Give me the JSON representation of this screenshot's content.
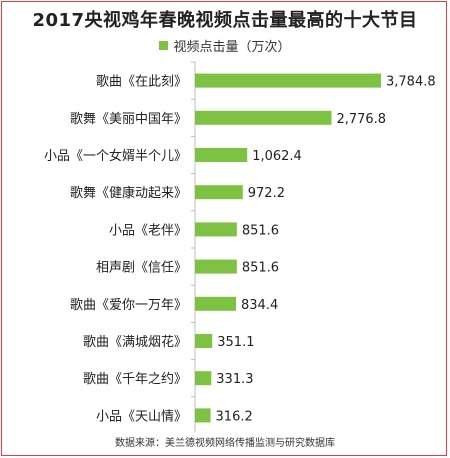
{
  "chart_data": {
    "type": "bar",
    "orientation": "horizontal",
    "title": "2017央视鸡年春晚视频点击量最高的十大节目",
    "categories": [
      "歌曲《在此刻》",
      "歌舞《美丽中国年》",
      "小品《一个女婿半个儿》",
      "歌舞《健康动起来》",
      "小品《老伴》",
      "相声剧《信任》",
      "歌曲《爱你一万年》",
      "歌曲《满城烟花》",
      "歌曲《千年之约》",
      "小品《天山情》"
    ],
    "series": [
      {
        "name": "视频点击量（万次）",
        "values": [
          3784.8,
          2776.8,
          1062.4,
          972.2,
          851.6,
          851.6,
          834.4,
          351.1,
          331.3,
          316.2
        ],
        "labels": [
          "3,784.8",
          "2,776.8",
          "1,062.4",
          "972.2",
          "851.6",
          "851.6",
          "834.4",
          "351.1",
          "331.3",
          "316.2"
        ],
        "color": "#7dc242"
      }
    ],
    "xlim": [
      0,
      3784.8
    ],
    "grid": false,
    "legend_position": "top-center"
  },
  "source_note": "数据来源：美兰德视频网络传播监测与研究数据库"
}
